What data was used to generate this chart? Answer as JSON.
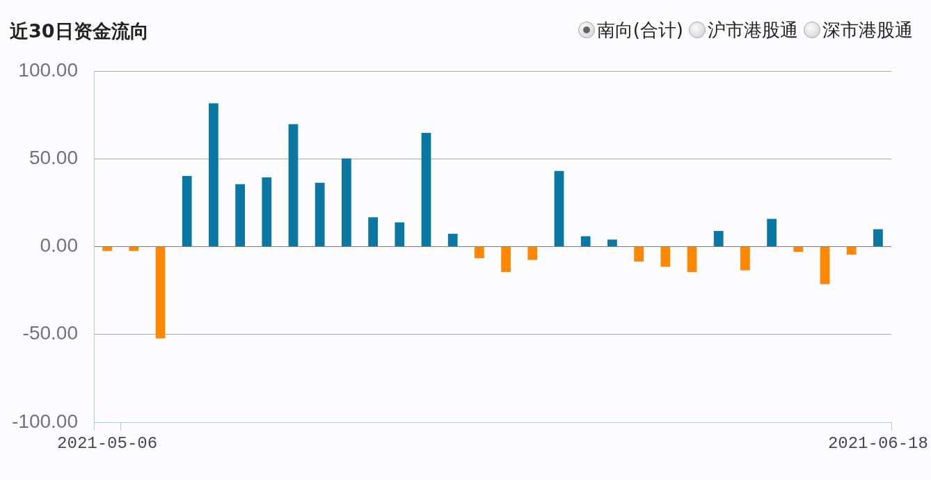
{
  "chart_data": {
    "type": "bar",
    "title": "近30日资金流向",
    "categories": [
      "2021-05-06",
      null,
      null,
      null,
      null,
      null,
      null,
      null,
      null,
      null,
      null,
      null,
      null,
      null,
      null,
      null,
      null,
      null,
      null,
      null,
      null,
      null,
      null,
      null,
      null,
      null,
      null,
      null,
      null,
      "2021-06-18"
    ],
    "values": [
      -2.5,
      -2.5,
      -52.3,
      40.2,
      81.6,
      35.5,
      39.4,
      69.7,
      36.3,
      50.2,
      16.7,
      13.8,
      64.8,
      7.3,
      -6.6,
      -14.5,
      -7.6,
      43.1,
      5.9,
      4.0,
      -8.5,
      -11.5,
      -14.5,
      8.9,
      -13.5,
      15.8,
      -3.0,
      -21.4,
      -4.6,
      9.9
    ],
    "colors": [
      "#ff8800",
      "#ff8800",
      "#ff8800",
      "#0b77a3",
      "#0b77a3",
      "#0b77a3",
      "#0b77a3",
      "#0b77a3",
      "#0b77a3",
      "#0b77a3",
      "#0b77a3",
      "#0b77a3",
      "#0b77a3",
      "#0b77a3",
      "#ff8800",
      "#ff8800",
      "#ff8800",
      "#0b77a3",
      "#0b77a3",
      "#0b77a3",
      "#ff8800",
      "#ff8800",
      "#ff8800",
      "#0b77a3",
      "#ff8800",
      "#0b77a3",
      "#ff8800",
      "#ff8800",
      "#ff8800",
      "#0b77a3"
    ],
    "ylim": [
      -100,
      100
    ],
    "yticks": [
      {
        "value": -100,
        "label": "-100.00"
      },
      {
        "value": -50,
        "label": "-50.00"
      },
      {
        "value": 0,
        "label": "0.00"
      },
      {
        "value": 50,
        "label": "50.00"
      },
      {
        "value": 100,
        "label": "100.00"
      }
    ],
    "grid": "y",
    "annotations": [
      "南向(合计)",
      "沪市港股通",
      "深市港股通"
    ]
  }
}
